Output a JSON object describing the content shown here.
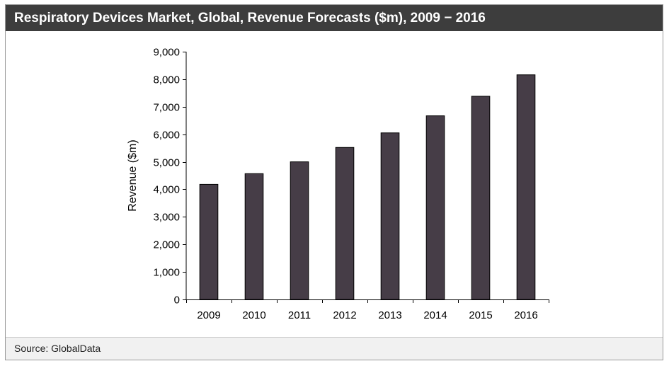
{
  "header": {
    "title": "Respiratory Devices Market, Global, Revenue Forecasts ($m), 2009 − 2016"
  },
  "footer": {
    "source": "Source: GlobalData"
  },
  "colors": {
    "header_bg": "#3d3d3d",
    "bar_fill": "#463d47",
    "footer_bg": "#f1f1f1"
  },
  "chart_data": {
    "type": "bar",
    "title": "Respiratory Devices Market, Global, Revenue Forecasts ($m), 2009 − 2016",
    "xlabel": "",
    "ylabel": "Revenue ($m)",
    "categories": [
      "2009",
      "2010",
      "2011",
      "2012",
      "2013",
      "2014",
      "2015",
      "2016"
    ],
    "values": [
      4180,
      4570,
      5000,
      5520,
      6050,
      6670,
      7380,
      8160
    ],
    "ylim": [
      0,
      9000
    ],
    "yticks": [
      0,
      1000,
      2000,
      3000,
      4000,
      5000,
      6000,
      7000,
      8000,
      9000
    ],
    "ytick_labels": [
      "0",
      "1,000",
      "2,000",
      "3,000",
      "4,000",
      "5,000",
      "6,000",
      "7,000",
      "8,000",
      "9,000"
    ],
    "grid": false,
    "legend": "none"
  }
}
